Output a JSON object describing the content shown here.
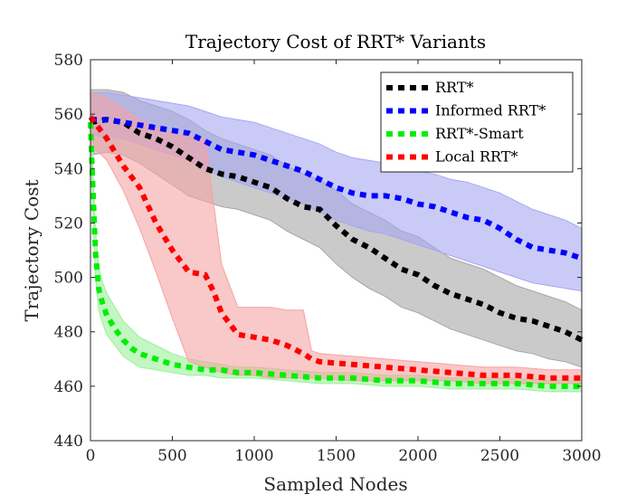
{
  "chart_data": {
    "type": "line",
    "title": "Trajectory Cost of RRT* Variants",
    "xlabel": "Sampled Nodes",
    "ylabel": "Trajectory Cost",
    "xlim": [
      0,
      3000
    ],
    "ylim": [
      440,
      580
    ],
    "xticks": [
      0,
      500,
      1000,
      1500,
      2000,
      2500,
      3000
    ],
    "yticks": [
      440,
      460,
      480,
      500,
      520,
      540,
      560,
      580
    ],
    "grid": false,
    "legend_position": "top-right",
    "line_style": "dotted",
    "series": [
      {
        "name": "RRT*",
        "color": "#000000",
        "band_color": "#a6a6a6",
        "x": [
          0,
          100,
          200,
          300,
          400,
          500,
          600,
          700,
          800,
          900,
          1000,
          1100,
          1200,
          1300,
          1400,
          1500,
          1600,
          1700,
          1800,
          1900,
          2000,
          2100,
          2200,
          2300,
          2400,
          2500,
          2600,
          2700,
          2800,
          2900,
          3000
        ],
        "mean": [
          557,
          558,
          557,
          553,
          551,
          548,
          544,
          540,
          538,
          537,
          535,
          533,
          529,
          526,
          525,
          519,
          514,
          511,
          507,
          503,
          501,
          497,
          494,
          492,
          490,
          487,
          485,
          484,
          482,
          480,
          477
        ],
        "lower": [
          545,
          546,
          545,
          542,
          538,
          534,
          530,
          528,
          526,
          525,
          523,
          521,
          517,
          514,
          511,
          505,
          500,
          496,
          493,
          489,
          487,
          484,
          481,
          479,
          477,
          475,
          473,
          472,
          470,
          469,
          467
        ],
        "upper": [
          569,
          569,
          568,
          565,
          563,
          561,
          558,
          554,
          551,
          549,
          547,
          545,
          541,
          538,
          536,
          532,
          527,
          524,
          521,
          517,
          515,
          511,
          507,
          505,
          503,
          500,
          497,
          495,
          493,
          491,
          488
        ]
      },
      {
        "name": "Informed RRT*",
        "color": "#0000ff",
        "band_color": "#a7a7f2",
        "x": [
          0,
          100,
          200,
          300,
          400,
          500,
          600,
          700,
          800,
          900,
          1000,
          1100,
          1200,
          1300,
          1400,
          1500,
          1600,
          1700,
          1800,
          1900,
          2000,
          2100,
          2200,
          2300,
          2400,
          2500,
          2600,
          2700,
          2800,
          2900,
          3000
        ],
        "mean": [
          558,
          558,
          557,
          556,
          555,
          554,
          553,
          550,
          547,
          546,
          545,
          543,
          541,
          539,
          536,
          533,
          531,
          530,
          530,
          529,
          527,
          526,
          524,
          522,
          521,
          518,
          514,
          511,
          510,
          509,
          507
        ],
        "lower": [
          552,
          552,
          551,
          549,
          547,
          545,
          543,
          540,
          537,
          535,
          533,
          531,
          529,
          527,
          524,
          521,
          519,
          517,
          516,
          514,
          512,
          510,
          508,
          506,
          504,
          502,
          500,
          498,
          497,
          496,
          495
        ],
        "upper": [
          568,
          568,
          567,
          566,
          565,
          564,
          563,
          561,
          559,
          558,
          557,
          555,
          553,
          551,
          549,
          546,
          544,
          543,
          542,
          541,
          539,
          538,
          536,
          535,
          533,
          531,
          528,
          525,
          523,
          521,
          518
        ]
      },
      {
        "name": "RRT*-Smart",
        "color": "#00ee00",
        "band_color": "#9af09a",
        "x": [
          0,
          10,
          20,
          30,
          50,
          75,
          100,
          150,
          200,
          250,
          300,
          400,
          500,
          600,
          700,
          800,
          900,
          1000,
          1200,
          1400,
          1600,
          1800,
          2000,
          2200,
          2400,
          2600,
          2800,
          3000
        ],
        "mean": [
          557,
          540,
          525,
          510,
          496,
          490,
          486,
          481,
          477,
          474,
          472,
          470,
          468,
          467,
          466,
          466,
          465,
          465,
          464,
          463,
          463,
          462,
          462,
          461,
          461,
          461,
          460,
          460
        ],
        "lower": [
          552,
          533,
          516,
          501,
          488,
          483,
          479,
          475,
          471,
          469,
          467,
          466,
          465,
          464,
          464,
          463,
          463,
          463,
          462,
          461,
          461,
          460,
          460,
          459,
          459,
          459,
          458,
          458
        ],
        "upper": [
          562,
          548,
          533,
          518,
          504,
          498,
          494,
          489,
          484,
          481,
          478,
          475,
          472,
          470,
          469,
          468,
          467,
          467,
          466,
          465,
          465,
          464,
          464,
          463,
          463,
          463,
          462,
          462
        ]
      },
      {
        "name": "Local RRT*",
        "color": "#ff0000",
        "band_color": "#f5a3a3",
        "x": [
          0,
          100,
          200,
          300,
          400,
          500,
          600,
          700,
          750,
          800,
          900,
          1000,
          1100,
          1200,
          1300,
          1350,
          1400,
          1600,
          1800,
          2000,
          2200,
          2400,
          2600,
          2800,
          3000
        ],
        "mean": [
          559,
          551,
          541,
          533,
          520,
          510,
          502,
          501,
          495,
          487,
          479,
          478,
          477,
          475,
          472,
          470,
          469,
          468,
          467,
          466,
          465,
          464,
          464,
          463,
          463
        ],
        "lower": [
          549,
          543,
          532,
          518,
          502,
          485,
          469,
          467,
          466,
          465,
          464,
          464,
          463,
          463,
          463,
          463,
          463,
          462,
          462,
          462,
          462,
          461,
          461,
          461,
          461
        ],
        "upper": [
          568,
          566,
          562,
          558,
          555,
          553,
          552,
          551,
          528,
          505,
          489,
          489,
          489,
          488,
          488,
          473,
          472,
          471,
          470,
          469,
          468,
          467,
          467,
          466,
          466
        ]
      }
    ]
  }
}
